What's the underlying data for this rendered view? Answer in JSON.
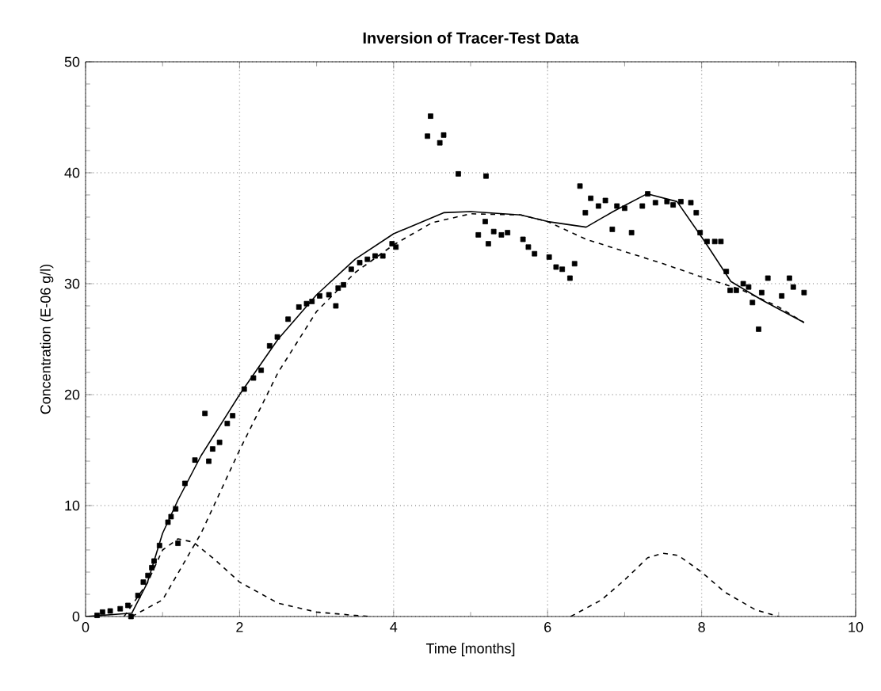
{
  "chart_data": {
    "type": "line",
    "title": "Inversion of Tracer-Test Data",
    "xlabel": "Time [months]",
    "ylabel": "Concentration (E-06 g/l)",
    "xlim": [
      0,
      10
    ],
    "ylim": [
      0,
      50
    ],
    "xticks": [
      0,
      2,
      4,
      6,
      8,
      10
    ],
    "yticks": [
      0,
      10,
      20,
      30,
      40,
      50
    ],
    "grid": true,
    "series": [
      {
        "type": "scatter",
        "marker": "square",
        "color": "#000000",
        "x": [
          0.15,
          0.22,
          0.32,
          0.45,
          0.55,
          0.59,
          0.68,
          0.75,
          0.81,
          0.86,
          0.89,
          0.96,
          1.07,
          1.11,
          1.17,
          1.2,
          1.29,
          1.42,
          1.55,
          1.6,
          1.65,
          1.74,
          1.84,
          1.91,
          2.06,
          2.18,
          2.28,
          2.39,
          2.49,
          2.63,
          2.77,
          2.87,
          2.94,
          3.04,
          3.16,
          3.25,
          3.28,
          3.35,
          3.45,
          3.56,
          3.66,
          3.76,
          3.86,
          3.98,
          4.03,
          4.44,
          4.48,
          4.6,
          4.65,
          4.84,
          5.1,
          5.19,
          5.2,
          5.23,
          5.3,
          5.4,
          5.48,
          5.68,
          5.75,
          5.83,
          6.02,
          6.11,
          6.19,
          6.29,
          6.35,
          6.42,
          6.49,
          6.56,
          6.66,
          6.75,
          6.84,
          6.9,
          7.0,
          7.09,
          7.23,
          7.3,
          7.4,
          7.55,
          7.63,
          7.73,
          7.86,
          7.93,
          7.98,
          8.07,
          8.17,
          8.25,
          8.32,
          8.37,
          8.45,
          8.54,
          8.61,
          8.66,
          8.74,
          8.78,
          8.86,
          9.04,
          9.14,
          9.19,
          9.33
        ],
        "values": [
          0.1,
          0.4,
          0.5,
          0.7,
          1.0,
          0,
          1.9,
          3.1,
          3.7,
          4.4,
          5.0,
          6.4,
          8.5,
          9.0,
          9.7,
          6.6,
          12.0,
          14.1,
          18.3,
          14.0,
          15.1,
          15.7,
          17.4,
          18.1,
          20.5,
          21.5,
          22.2,
          24.4,
          25.2,
          26.8,
          27.9,
          28.2,
          28.4,
          28.9,
          29.0,
          28.0,
          29.6,
          29.9,
          31.3,
          31.9,
          32.2,
          32.5,
          32.5,
          33.6,
          33.3,
          43.3,
          45.1,
          42.7,
          43.4,
          39.9,
          34.4,
          35.6,
          39.7,
          33.6,
          34.7,
          34.4,
          34.6,
          34.0,
          33.3,
          32.7,
          32.4,
          31.5,
          31.3,
          30.5,
          31.8,
          38.8,
          36.4,
          37.7,
          37.0,
          37.5,
          34.9,
          37.0,
          36.8,
          34.6,
          37.0,
          38.1,
          37.3,
          37.4,
          37.1,
          37.4,
          37.3,
          36.4,
          34.6,
          33.8,
          33.8,
          33.8,
          31.1,
          29.4,
          29.4,
          30.0,
          29.7,
          28.3,
          25.9,
          29.2,
          30.5,
          28.9,
          30.5,
          29.7,
          29.2
        ]
      },
      {
        "line_style": "solid",
        "color": "#000000",
        "x": [
          0,
          0.6,
          0.8,
          1.0,
          1.2,
          1.5,
          2,
          2.5,
          3,
          3.5,
          4,
          4.65,
          5,
          5.65,
          6,
          6.5,
          6.85,
          7.29,
          7.68,
          8.04,
          8.38,
          8.79,
          9.33
        ],
        "values": [
          0,
          0.3,
          3,
          7.5,
          10.5,
          14.5,
          20,
          25,
          29,
          32.2,
          34.5,
          36.4,
          36.5,
          36.2,
          35.6,
          35.1,
          36.5,
          38.1,
          37.4,
          33.8,
          30.2,
          28.5,
          26.5
        ]
      },
      {
        "line_style": "dashed",
        "color": "#000000",
        "x": [
          0.6,
          1,
          1.5,
          2,
          2.5,
          3,
          3.5,
          4,
          4.5,
          5,
          5.65,
          6,
          6.5,
          7,
          7.5,
          8,
          8.5,
          9,
          9.33
        ],
        "values": [
          0,
          1.5,
          7.5,
          15,
          22,
          27.5,
          31,
          33.5,
          35.5,
          36.3,
          36.2,
          35.6,
          34,
          32.9,
          31.8,
          30.6,
          29.5,
          27.9,
          26.5
        ]
      },
      {
        "line_style": "dashed",
        "color": "#000000",
        "x": [
          0.5,
          0.8,
          1.0,
          1.2,
          1.4,
          1.7,
          2,
          2.5,
          3,
          3.5,
          3.7
        ],
        "values": [
          0,
          3,
          6,
          7.0,
          6.7,
          5,
          3.1,
          1.2,
          0.4,
          0.1,
          0
        ]
      },
      {
        "line_style": "dashed",
        "color": "#000000",
        "x": [
          6.3,
          6.7,
          7.0,
          7.3,
          7.5,
          7.7,
          8.0,
          8.3,
          8.7,
          9.0
        ],
        "values": [
          0,
          1.5,
          3.3,
          5.3,
          5.7,
          5.5,
          4.0,
          2.2,
          0.6,
          0
        ]
      }
    ]
  }
}
